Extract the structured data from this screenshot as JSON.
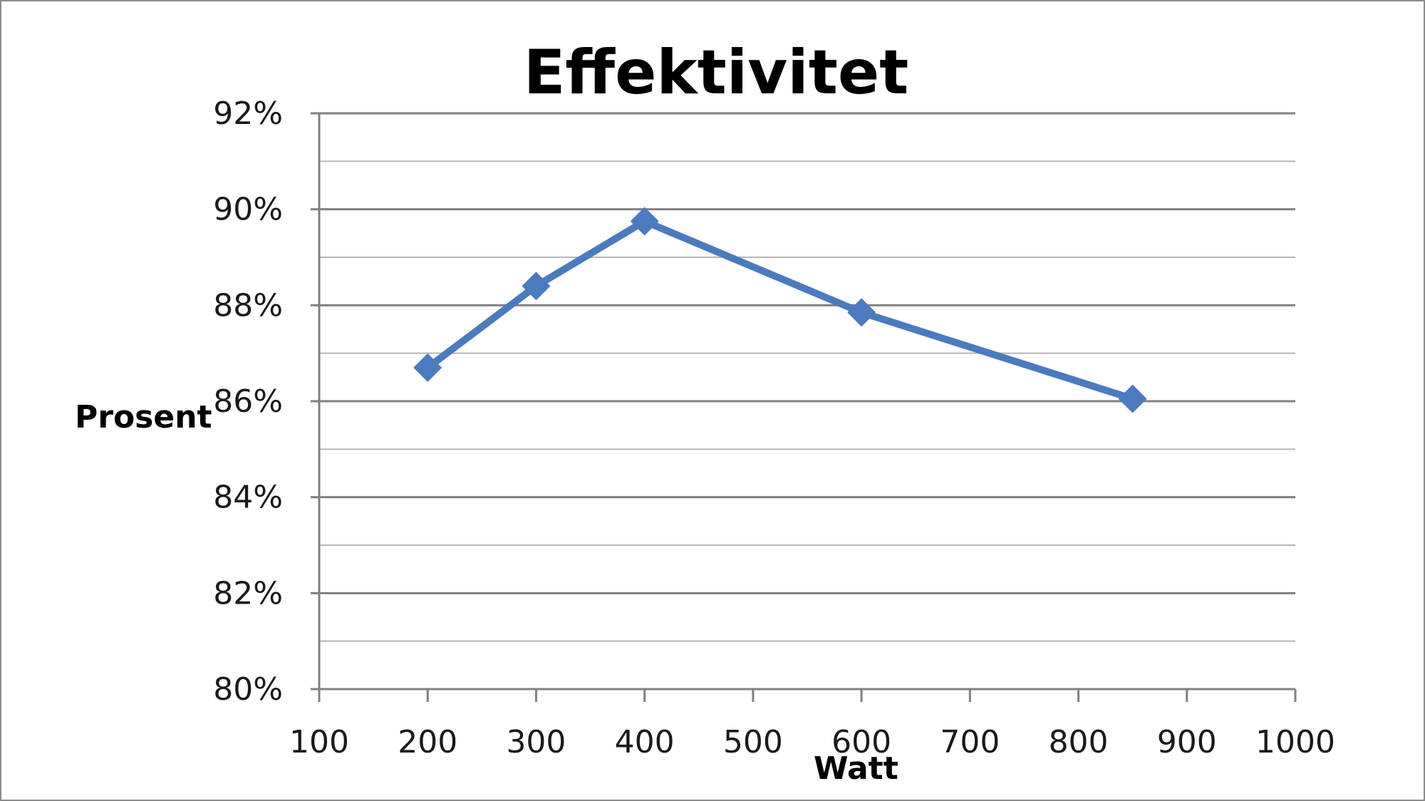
{
  "chart_data": {
    "type": "line",
    "title": "Effektivitet",
    "xlabel": "Watt",
    "ylabel": "Prosent",
    "xlim": [
      100,
      1000
    ],
    "ylim": [
      80,
      92
    ],
    "x_ticks": [
      100,
      200,
      300,
      400,
      500,
      600,
      700,
      800,
      900,
      1000
    ],
    "x_tick_labels": [
      "100",
      "200",
      "300",
      "400",
      "500",
      "600",
      "700",
      "800",
      "900",
      "1000"
    ],
    "y_major_ticks": [
      80,
      82,
      84,
      86,
      88,
      90,
      92
    ],
    "y_tick_labels": [
      "80%",
      "82%",
      "84%",
      "86%",
      "88%",
      "90%",
      "92%"
    ],
    "y_minor_ticks": [
      81,
      83,
      85,
      87,
      89,
      91
    ],
    "grid": true,
    "legend": "none",
    "series": [
      {
        "color": "#4a7bbe",
        "marker": "diamond",
        "x": [
          200,
          300,
          400,
          600,
          850
        ],
        "values": [
          86.7,
          88.4,
          89.75,
          87.85,
          86.05
        ]
      }
    ]
  }
}
